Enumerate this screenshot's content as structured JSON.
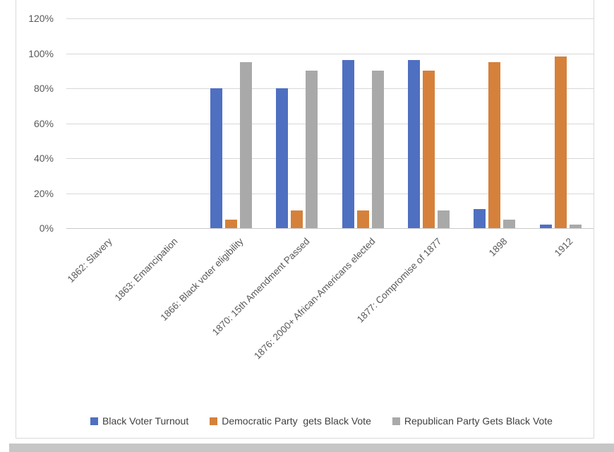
{
  "chart_data": {
    "type": "bar",
    "title": "",
    "xlabel": "",
    "ylabel": "",
    "categories": [
      "1862: Slavery",
      "1863: Emancipation",
      "1866: Black voter eligibility",
      "1870: 15th Amendment Passed",
      "1876: 2000+ African-Americans elected",
      "1877: Compromise of 1877",
      "1898",
      "1912"
    ],
    "series": [
      {
        "name": "Black Voter Turnout",
        "color": "#4f6fc1",
        "values": [
          0,
          0,
          80,
          80,
          96,
          96,
          11,
          2
        ]
      },
      {
        "name": "Democratic Party  gets Black Vote",
        "color": "#d5813b",
        "values": [
          0,
          0,
          5,
          10,
          10,
          90,
          95,
          98
        ]
      },
      {
        "name": "Republican Party Gets Black Vote",
        "color": "#a9a9a9",
        "values": [
          0,
          0,
          95,
          90,
          90,
          10,
          5,
          2
        ]
      }
    ],
    "ylim": [
      0,
      120
    ],
    "yticks": [
      0,
      20,
      40,
      60,
      80,
      100,
      120
    ],
    "ytick_suffix": "%",
    "grid": true,
    "legend_position": "bottom"
  },
  "colors": {
    "gridline": "#d8d8d8",
    "zero_axis": "#c9c9c9",
    "frame_border": "#d9d9d9",
    "axis_text": "#595959",
    "legend_text": "#404040",
    "background": "#ffffff",
    "shadow_strip": "#c6c6c6"
  }
}
